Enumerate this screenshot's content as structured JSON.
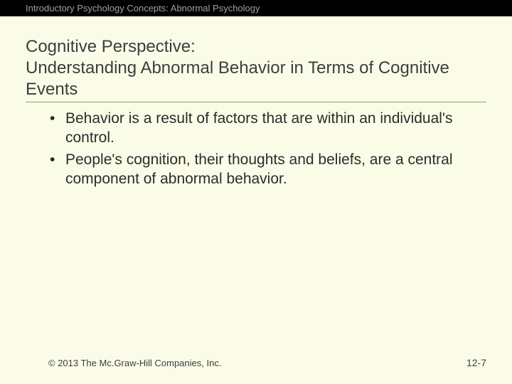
{
  "header": {
    "text": "Introductory Psychology Concepts: Abnormal Psychology"
  },
  "slide": {
    "title_line1": "Cognitive Perspective:",
    "title_line2": "Understanding Abnormal Behavior in Terms of Cognitive Events",
    "bullets": [
      "Behavior is a result of factors that are within an individual's control.",
      "People's cognition, their thoughts and beliefs, are a central component of abnormal behavior."
    ]
  },
  "footer": {
    "copyright": "© 2013 The Mc.Graw-Hill Companies, Inc.",
    "page": "12-7"
  },
  "colors": {
    "background": "#fbfce8",
    "header_bg": "#000000",
    "header_text": "#9fa0a0",
    "title_text": "#3d3d3d",
    "underline": "#8fa34b",
    "body_text": "#2b2b2b"
  },
  "typography": {
    "header_fontsize": 13,
    "title_fontsize": 24,
    "bullet_fontsize": 21,
    "footer_fontsize": 13
  }
}
